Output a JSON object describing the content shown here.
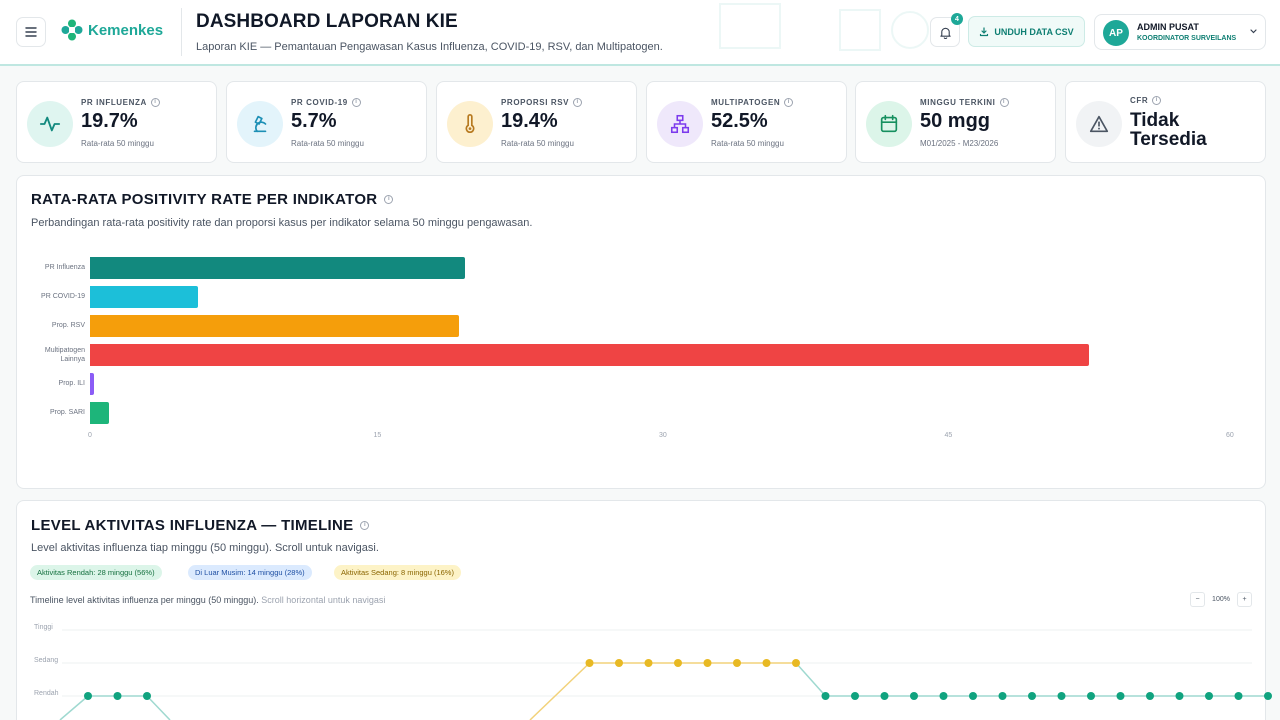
{
  "header": {
    "logo_text": "Kemenkes",
    "title": "DASHBOARD LAPORAN KIE",
    "subtitle": "Laporan KIE — Pemantauan Pengawasan Kasus Influenza, COVID-19, RSV, dan Multipatogen.",
    "notif_count": "4",
    "csv_label": "UNDUH DATA CSV",
    "user_initials": "AP",
    "user_name": "ADMIN PUSAT",
    "user_role": "KOORDINATOR SURVEILANS"
  },
  "kpis": [
    {
      "label": "PR INFLUENZA",
      "value": "19.7%",
      "note": "Rata-rata 50 minggu",
      "icon": "activity-icon"
    },
    {
      "label": "PR COVID-19",
      "value": "5.7%",
      "note": "Rata-rata 50 minggu",
      "icon": "microscope-icon"
    },
    {
      "label": "PROPORSI RSV",
      "value": "19.4%",
      "note": "Rata-rata 50 minggu",
      "icon": "thermometer-icon"
    },
    {
      "label": "MULTIPATOGEN",
      "value": "52.5%",
      "note": "Rata-rata 50 minggu",
      "icon": "network-icon"
    },
    {
      "label": "MINGGU TERKINI",
      "value": "50 mgg",
      "note": "M01/2025 - M23/2026",
      "icon": "calendar-icon"
    },
    {
      "label": "CFR",
      "value_line1": "Tidak",
      "value_line2": "Tersedia",
      "icon": "warning-icon"
    }
  ],
  "colors": {
    "accent": "#1ea898",
    "influenza": "#12897e",
    "covid": "#1cbfd9",
    "rsv": "#f59e0b",
    "multipatogen": "#ef4444",
    "ili": "#8b5cf6",
    "sari": "#1db57a",
    "rendah": "#10a37f",
    "sedang": "#e8b923"
  },
  "bar_panel": {
    "title": "RATA-RATA POSITIVITY RATE PER INDIKATOR",
    "desc": "Perbandingan rata-rata positivity rate dan proporsi kasus per indikator selama 50 minggu pengawasan."
  },
  "chart_data": [
    {
      "type": "bar",
      "orientation": "horizontal",
      "categories": [
        "PR Influenza",
        "PR COVID-19",
        "Prop. RSV",
        "Multipatogen Lainnya",
        "Prop. ILI",
        "Prop. SARI"
      ],
      "values": [
        19.7,
        5.7,
        19.4,
        52.5,
        0.2,
        1.0
      ],
      "xticks": [
        "0",
        "15",
        "30",
        "45",
        "60"
      ],
      "xlim": [
        0,
        60
      ],
      "grid": false
    },
    {
      "type": "line",
      "y_levels": [
        "Rendah",
        "Sedang",
        "Tinggi"
      ],
      "visible_points": [
        {
          "week": 1,
          "level": "Rendah"
        },
        {
          "week": 2,
          "level": "Rendah"
        },
        {
          "week": 3,
          "level": "Rendah"
        },
        {
          "week": 18,
          "level": "Sedang"
        },
        {
          "week": 19,
          "level": "Sedang"
        },
        {
          "week": 20,
          "level": "Sedang"
        },
        {
          "week": 21,
          "level": "Sedang"
        },
        {
          "week": 22,
          "level": "Sedang"
        },
        {
          "week": 23,
          "level": "Sedang"
        },
        {
          "week": 24,
          "level": "Sedang"
        },
        {
          "week": 25,
          "level": "Sedang"
        },
        {
          "week": 26,
          "level": "Rendah"
        },
        {
          "week": 27,
          "level": "Rendah"
        },
        {
          "week": 28,
          "level": "Rendah"
        },
        {
          "week": 29,
          "level": "Rendah"
        },
        {
          "week": 30,
          "level": "Rendah"
        },
        {
          "week": 31,
          "level": "Rendah"
        },
        {
          "week": 32,
          "level": "Rendah"
        },
        {
          "week": 33,
          "level": "Rendah"
        },
        {
          "week": 34,
          "level": "Rendah"
        },
        {
          "week": 35,
          "level": "Rendah"
        },
        {
          "week": 36,
          "level": "Rendah"
        },
        {
          "week": 37,
          "level": "Rendah"
        },
        {
          "week": 38,
          "level": "Rendah"
        },
        {
          "week": 39,
          "level": "Rendah"
        },
        {
          "week": 40,
          "level": "Rendah"
        },
        {
          "week": 41,
          "level": "Rendah"
        }
      ],
      "grid": true
    }
  ],
  "timeline_panel": {
    "title": "LEVEL AKTIVITAS INFLUENZA — TIMELINE",
    "desc": "Level aktivitas influenza tiap minggu (50 minggu). Scroll untuk navigasi.",
    "pills": [
      "Aktivitas Rendah: 28 minggu (56%)",
      "Di Luar Musim: 14 minggu (28%)",
      "Aktivitas Sedang: 8 minggu (16%)"
    ],
    "caption": "Timeline level aktivitas influenza per minggu (50 minggu).",
    "caption_hint": "Scroll horizontal untuk navigasi",
    "zoom_minus": "−",
    "zoom_level": "100%",
    "zoom_plus": "+"
  }
}
